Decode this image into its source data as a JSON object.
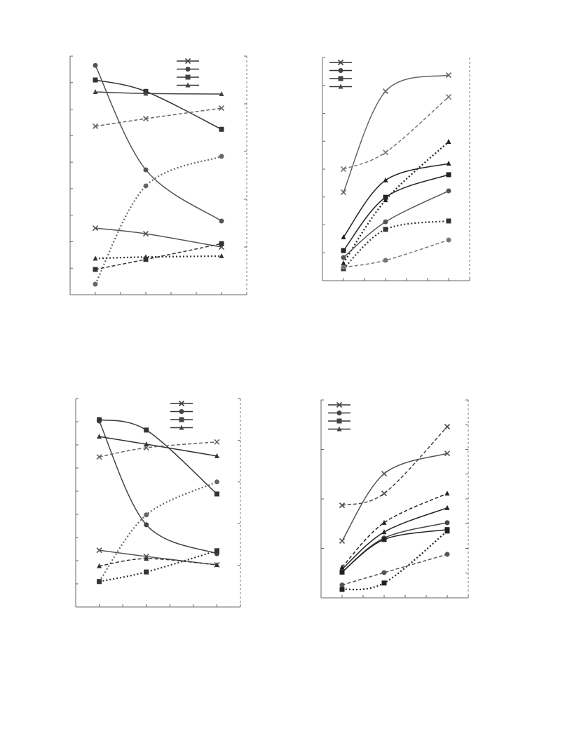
{
  "chart_data": [
    {
      "type": "line",
      "x": [
        1,
        3,
        6
      ],
      "xlim": [
        0,
        7
      ],
      "xticks": [
        0,
        1,
        2,
        3,
        4,
        5,
        6,
        7
      ],
      "ylim": [
        0,
        9
      ],
      "yticks": [
        0,
        1,
        2,
        3,
        4,
        5,
        6,
        7,
        8,
        9
      ],
      "y2lim": [
        0,
        5
      ],
      "y2ticks": [
        0,
        1,
        2,
        3,
        4,
        5
      ],
      "legend": {
        "corner": "top-right",
        "markers": [
          "x",
          "circle",
          "square",
          "triangle"
        ]
      },
      "series": [
        {
          "marker": "x",
          "dash": "solid",
          "color": "#555555",
          "values": [
            2.51,
            2.3,
            1.8
          ]
        },
        {
          "marker": "circle",
          "dash": "solid",
          "color": "#555555",
          "values": [
            8.65,
            4.71,
            2.78
          ]
        },
        {
          "marker": "square",
          "dash": "solid",
          "color": "#333333",
          "values": [
            8.1,
            7.67,
            6.24
          ]
        },
        {
          "marker": "triangle",
          "dash": "solid",
          "color": "#444444",
          "values": [
            7.65,
            7.59,
            7.57
          ]
        },
        {
          "marker": "x",
          "dash": "dashed",
          "color": "#666666",
          "axis": "y2",
          "values": [
            3.53,
            3.69,
            3.91
          ]
        },
        {
          "marker": "circle",
          "dash": "dotted",
          "color": "#666666",
          "axis": "y2",
          "values": [
            0.22,
            2.28,
            2.9
          ]
        },
        {
          "marker": "square",
          "dash": "dashed",
          "color": "#333333",
          "axis": "y2",
          "values": [
            0.53,
            0.74,
            1.07
          ]
        },
        {
          "marker": "triangle",
          "dash": "dotted",
          "color": "#333333",
          "axis": "y2",
          "values": [
            0.76,
            0.79,
            0.81
          ]
        }
      ]
    },
    {
      "type": "line",
      "x": [
        1,
        3,
        6
      ],
      "xlim": [
        0,
        7
      ],
      "xticks": [
        0,
        1,
        2,
        3,
        4,
        5,
        6,
        7
      ],
      "ylim": [
        0,
        8
      ],
      "yticks": [
        0,
        1,
        2,
        3,
        4,
        5,
        6,
        7,
        8
      ],
      "legend": {
        "corner": "top-left",
        "markers": [
          "x",
          "circle",
          "square",
          "triangle"
        ]
      },
      "series": [
        {
          "marker": "x",
          "dash": "solid",
          "color": "#666666",
          "values": [
            3.17,
            6.79,
            7.37
          ]
        },
        {
          "marker": "x",
          "dash": "dashed",
          "color": "#777777",
          "values": [
            4.0,
            4.6,
            6.59
          ]
        },
        {
          "marker": "triangle",
          "dash": "dotted",
          "color": "#222222",
          "values": [
            0.63,
            2.89,
            4.98
          ]
        },
        {
          "marker": "triangle",
          "dash": "solid",
          "color": "#222222",
          "values": [
            1.56,
            3.6,
            4.2
          ]
        },
        {
          "marker": "square",
          "dash": "solid",
          "color": "#222222",
          "values": [
            1.08,
            2.99,
            3.8
          ]
        },
        {
          "marker": "circle",
          "dash": "solid",
          "color": "#555555",
          "values": [
            0.83,
            2.11,
            3.22
          ]
        },
        {
          "marker": "square",
          "dash": "dotted",
          "color": "#333333",
          "values": [
            0.43,
            1.84,
            2.14
          ]
        },
        {
          "marker": "circle",
          "dash": "dashed",
          "color": "#777777",
          "values": [
            0.48,
            0.73,
            1.46
          ]
        }
      ]
    },
    {
      "type": "line",
      "x": [
        1,
        3,
        6
      ],
      "xlim": [
        0,
        7
      ],
      "xticks": [
        0,
        1,
        2,
        3,
        4,
        5,
        6,
        7
      ],
      "ylim": [
        0,
        9
      ],
      "yticks": [
        0,
        1,
        2,
        3,
        4,
        5,
        6,
        7,
        8,
        9
      ],
      "y2lim": [
        0,
        5
      ],
      "y2ticks": [
        0,
        1,
        2,
        3,
        4,
        5
      ],
      "legend": {
        "corner": "top-right",
        "markers": [
          "x",
          "circle",
          "square",
          "triangle"
        ]
      },
      "series": [
        {
          "marker": "x",
          "dash": "solid",
          "color": "#555555",
          "values": [
            2.45,
            2.18,
            1.82
          ]
        },
        {
          "marker": "circle",
          "dash": "solid",
          "color": "#444444",
          "values": [
            8.03,
            3.55,
            2.3
          ]
        },
        {
          "marker": "square",
          "dash": "solid",
          "color": "#333333",
          "values": [
            8.09,
            7.64,
            4.88
          ]
        },
        {
          "marker": "triangle",
          "dash": "solid",
          "color": "#333333",
          "values": [
            7.36,
            7.03,
            6.52
          ]
        },
        {
          "marker": "x",
          "dash": "dashed",
          "color": "#666666",
          "axis": "y2",
          "values": [
            3.6,
            3.82,
            3.96
          ]
        },
        {
          "marker": "circle",
          "dash": "dotted",
          "color": "#666666",
          "axis": "y2",
          "values": [
            0.61,
            2.21,
            3.0
          ]
        },
        {
          "marker": "square",
          "dash": "dotted",
          "color": "#333333",
          "axis": "y2",
          "values": [
            0.61,
            0.84,
            1.35
          ]
        },
        {
          "marker": "triangle",
          "dash": "dashed",
          "color": "#333333",
          "axis": "y2",
          "values": [
            0.98,
            1.16,
            1.01
          ]
        }
      ]
    },
    {
      "type": "line",
      "x": [
        1,
        3,
        6
      ],
      "xlim": [
        0,
        7
      ],
      "xticks": [
        0,
        1,
        2,
        3,
        4,
        5,
        6,
        7
      ],
      "ylim": [
        0,
        4
      ],
      "yticks": [
        0,
        1,
        2,
        3,
        4
      ],
      "y2lim": [
        0,
        8
      ],
      "y2ticks": [
        0,
        1,
        2,
        3,
        4,
        5,
        6,
        7,
        8
      ],
      "legend": {
        "corner": "top-left",
        "markers": [
          "x",
          "circle",
          "square",
          "triangle"
        ]
      },
      "series": [
        {
          "marker": "x",
          "dash": "solid",
          "color": "#555555",
          "values": [
            1.15,
            2.51,
            2.92
          ]
        },
        {
          "marker": "x",
          "dash": "dashed",
          "color": "#444444",
          "values": [
            1.87,
            2.11,
            3.46
          ]
        },
        {
          "marker": "triangle",
          "dash": "dashed",
          "color": "#222222",
          "values": [
            0.62,
            1.52,
            2.11
          ]
        },
        {
          "marker": "triangle",
          "dash": "solid",
          "color": "#222222",
          "values": [
            0.58,
            1.33,
            1.82
          ]
        },
        {
          "marker": "circle",
          "dash": "solid",
          "color": "#444444",
          "values": [
            0.52,
            1.21,
            1.52
          ]
        },
        {
          "marker": "square",
          "dash": "solid",
          "color": "#222222",
          "values": [
            0.52,
            1.18,
            1.38
          ]
        },
        {
          "marker": "square",
          "dash": "dotted",
          "color": "#222222",
          "values": [
            0.17,
            0.3,
            1.35
          ]
        },
        {
          "marker": "circle",
          "dash": "dashed",
          "color": "#555555",
          "values": [
            0.26,
            0.51,
            0.88
          ]
        }
      ]
    }
  ]
}
